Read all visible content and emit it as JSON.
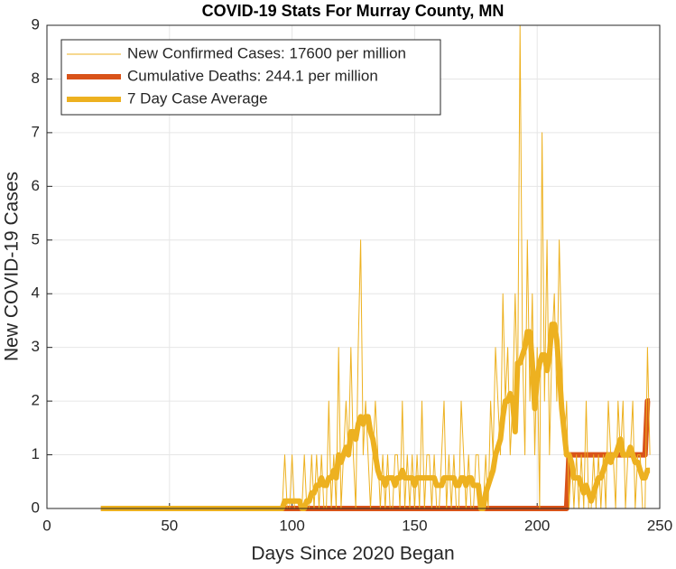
{
  "chart_data": {
    "type": "line",
    "title": "COVID-19 Stats For Murray County, MN",
    "x_label": "Days Since 2020 Began",
    "y_label": "New COVID-19 Cases",
    "xlim": [
      0,
      250
    ],
    "xticks": [
      0,
      50,
      100,
      150,
      200,
      250
    ],
    "ylim": [
      0,
      9
    ],
    "yticks": [
      0,
      1,
      2,
      3,
      4,
      5,
      6,
      7,
      8,
      9
    ],
    "grid": true,
    "legend": "upper left",
    "x": [
      22,
      23,
      24,
      25,
      26,
      27,
      28,
      29,
      30,
      31,
      32,
      33,
      34,
      35,
      36,
      37,
      38,
      39,
      40,
      41,
      42,
      43,
      44,
      45,
      46,
      47,
      48,
      49,
      50,
      51,
      52,
      53,
      54,
      55,
      56,
      57,
      58,
      59,
      60,
      61,
      62,
      63,
      64,
      65,
      66,
      67,
      68,
      69,
      70,
      71,
      72,
      73,
      74,
      75,
      76,
      77,
      78,
      79,
      80,
      81,
      82,
      83,
      84,
      85,
      86,
      87,
      88,
      89,
      90,
      91,
      92,
      93,
      94,
      95,
      96,
      97,
      98,
      99,
      100,
      101,
      102,
      103,
      104,
      105,
      106,
      107,
      108,
      109,
      110,
      111,
      112,
      113,
      114,
      115,
      116,
      117,
      118,
      119,
      120,
      121,
      122,
      123,
      124,
      125,
      126,
      127,
      128,
      129,
      130,
      131,
      132,
      133,
      134,
      135,
      136,
      137,
      138,
      139,
      140,
      141,
      142,
      143,
      144,
      145,
      146,
      147,
      148,
      149,
      150,
      151,
      152,
      153,
      154,
      155,
      156,
      157,
      158,
      159,
      160,
      161,
      162,
      163,
      164,
      165,
      166,
      167,
      168,
      169,
      170,
      171,
      172,
      173,
      174,
      175,
      176,
      177,
      178,
      179,
      180,
      181,
      182,
      183,
      184,
      185,
      186,
      187,
      188,
      189,
      190,
      191,
      192,
      193,
      194,
      195,
      196,
      197,
      198,
      199,
      200,
      201,
      202,
      203,
      204,
      205,
      206,
      207,
      208,
      209,
      210,
      211,
      212,
      213,
      214,
      215,
      216,
      217,
      218,
      219,
      220,
      221,
      222,
      223,
      224,
      225,
      226,
      227,
      228,
      229,
      230,
      231,
      232,
      233,
      234,
      235,
      236,
      237,
      238,
      239,
      240,
      241,
      242,
      243,
      244,
      245,
      246
    ],
    "series": [
      {
        "name": "New Confirmed Cases: 17600 per million",
        "color": "#edb120",
        "values": [
          0,
          0,
          0,
          0,
          0,
          0,
          0,
          0,
          0,
          0,
          0,
          0,
          0,
          0,
          0,
          0,
          0,
          0,
          0,
          0,
          0,
          0,
          0,
          0,
          0,
          0,
          0,
          0,
          0,
          0,
          0,
          0,
          0,
          0,
          0,
          0,
          0,
          0,
          0,
          0,
          0,
          0,
          0,
          0,
          0,
          0,
          0,
          0,
          0,
          0,
          0,
          0,
          0,
          0,
          0,
          0,
          0,
          0,
          0,
          0,
          0,
          0,
          0,
          0,
          0,
          0,
          0,
          0,
          0,
          0,
          0,
          0,
          0,
          0,
          0,
          1,
          0,
          0,
          1,
          0,
          0,
          0,
          0,
          1,
          0,
          0,
          1,
          0,
          1,
          0,
          1,
          0,
          0,
          2,
          0,
          1,
          0,
          3,
          0,
          1,
          2,
          1,
          3,
          1,
          0,
          3,
          5,
          1,
          2,
          1,
          0,
          1,
          2,
          1,
          0,
          1,
          0,
          1,
          0,
          0,
          1,
          1,
          0,
          2,
          0,
          1,
          0,
          1,
          0,
          1,
          0,
          2,
          0,
          1,
          1,
          0,
          1,
          0,
          0,
          1,
          2,
          0,
          1,
          0,
          1,
          0,
          0,
          2,
          1,
          0,
          1,
          0,
          0,
          1,
          1,
          0,
          0,
          1,
          0,
          2,
          1,
          3,
          2,
          1,
          4,
          2,
          3,
          1,
          2,
          4,
          2,
          9,
          3,
          1,
          5,
          2,
          4,
          1,
          3,
          0,
          7,
          2,
          5,
          1,
          3,
          4,
          2,
          5,
          3,
          1,
          2,
          0,
          1,
          0,
          1,
          0,
          1,
          0,
          2,
          0,
          0,
          1,
          0,
          1,
          0,
          1,
          0,
          2,
          1,
          1,
          0,
          2,
          1,
          2,
          0,
          1,
          1,
          2,
          0,
          1,
          1,
          0,
          0,
          3,
          1
        ]
      },
      {
        "name": "Cumulative Deaths: 244.1 per million",
        "color": "#d95319",
        "values": [
          0,
          0,
          0,
          0,
          0,
          0,
          0,
          0,
          0,
          0,
          0,
          0,
          0,
          0,
          0,
          0,
          0,
          0,
          0,
          0,
          0,
          0,
          0,
          0,
          0,
          0,
          0,
          0,
          0,
          0,
          0,
          0,
          0,
          0,
          0,
          0,
          0,
          0,
          0,
          0,
          0,
          0,
          0,
          0,
          0,
          0,
          0,
          0,
          0,
          0,
          0,
          0,
          0,
          0,
          0,
          0,
          0,
          0,
          0,
          0,
          0,
          0,
          0,
          0,
          0,
          0,
          0,
          0,
          0,
          0,
          0,
          0,
          0,
          0,
          0,
          0,
          0,
          0,
          0,
          0,
          0,
          0,
          0,
          0,
          0,
          0,
          0,
          0,
          0,
          0,
          0,
          0,
          0,
          0,
          0,
          0,
          0,
          0,
          0,
          0,
          0,
          0,
          0,
          0,
          0,
          0,
          0,
          0,
          0,
          0,
          0,
          0,
          0,
          0,
          0,
          0,
          0,
          0,
          0,
          0,
          0,
          0,
          0,
          0,
          0,
          0,
          0,
          0,
          0,
          0,
          0,
          0,
          0,
          0,
          0,
          0,
          0,
          0,
          0,
          0,
          0,
          0,
          0,
          0,
          0,
          0,
          0,
          0,
          0,
          0,
          0,
          0,
          0,
          0,
          0,
          0,
          0,
          0,
          0,
          0,
          0,
          0,
          0,
          0,
          0,
          0,
          0,
          0,
          0,
          0,
          0,
          0,
          0,
          0,
          0,
          0,
          0,
          0,
          0,
          0,
          0,
          0,
          0,
          0,
          0,
          0,
          0,
          0,
          0,
          0,
          0,
          1,
          1,
          1,
          1,
          1,
          1,
          1,
          1,
          1,
          1,
          1,
          1,
          1,
          1,
          1,
          1,
          1,
          1,
          1,
          1,
          1,
          1,
          1,
          1,
          1,
          1,
          1,
          1,
          1,
          1,
          1,
          1,
          2,
          2
        ]
      },
      {
        "name": "7 Day Case Average",
        "color": "#edb120",
        "values": [
          0,
          0,
          0,
          0,
          0,
          0,
          0,
          0,
          0,
          0,
          0,
          0,
          0,
          0,
          0,
          0,
          0,
          0,
          0,
          0,
          0,
          0,
          0,
          0,
          0,
          0,
          0,
          0,
          0,
          0,
          0,
          0,
          0,
          0,
          0,
          0,
          0,
          0,
          0,
          0,
          0,
          0,
          0,
          0,
          0,
          0,
          0,
          0,
          0,
          0,
          0,
          0,
          0,
          0,
          0,
          0,
          0,
          0,
          0,
          0,
          0,
          0,
          0,
          0,
          0,
          0,
          0,
          0,
          0,
          0,
          0,
          0,
          0,
          0,
          0,
          0.14,
          0.14,
          0.14,
          0.14,
          0.14,
          0.14,
          0.14,
          0,
          0,
          0.14,
          0.14,
          0.29,
          0.29,
          0.43,
          0.43,
          0.57,
          0.43,
          0.43,
          0.57,
          0.57,
          0.71,
          0.57,
          1,
          0.86,
          1,
          1.14,
          1,
          1.43,
          1.43,
          1.29,
          1.57,
          1.71,
          1.57,
          1.71,
          1.71,
          1.43,
          1.29,
          1,
          0.71,
          0.57,
          0.57,
          0.43,
          0.57,
          0.57,
          0.57,
          0.43,
          0.57,
          0.57,
          0.71,
          0.57,
          0.57,
          0.57,
          0.57,
          0.43,
          0.57,
          0.57,
          0.57,
          0.57,
          0.57,
          0.57,
          0.57,
          0.57,
          0.43,
          0.43,
          0.43,
          0.57,
          0.57,
          0.57,
          0.57,
          0.57,
          0.43,
          0.43,
          0.57,
          0.57,
          0.43,
          0.57,
          0.57,
          0.43,
          0.43,
          0.43,
          0,
          0,
          0.29,
          0.43,
          0.57,
          0.71,
          1,
          1.14,
          1.29,
          1.71,
          2,
          2,
          2.14,
          2,
          1.43,
          2.71,
          2.71,
          2.86,
          3,
          3.29,
          3.29,
          2.71,
          1.86,
          2.43,
          2.71,
          2.86,
          2.86,
          2.57,
          2.86,
          3.43,
          3.43,
          3.14,
          2.57,
          1.86,
          1.43,
          1,
          1,
          0.86,
          0.57,
          0.57,
          0.57,
          0.43,
          0.29,
          0.43,
          0.29,
          0.14,
          0.29,
          0.43,
          0.57,
          0.57,
          0.71,
          0.86,
          1,
          0.86,
          1,
          1,
          1.14,
          1.29,
          1,
          1,
          1,
          1.14,
          1,
          0.86,
          0.86,
          0.71,
          0.57,
          0.57,
          0.71,
          0.71
        ]
      }
    ]
  }
}
